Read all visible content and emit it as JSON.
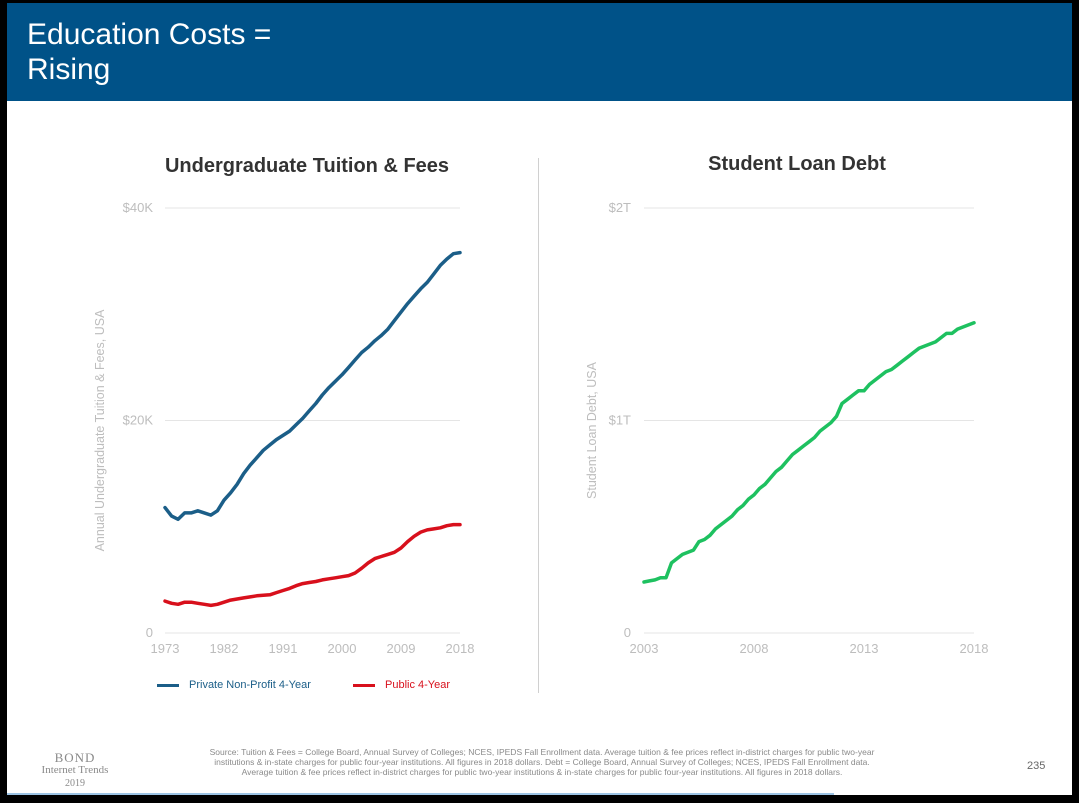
{
  "header": {
    "title_line1": "Education Costs =",
    "title_line2": "Rising"
  },
  "colors": {
    "header_bg": "#005288",
    "private": "#1b5e88",
    "public": "#d8101c",
    "debt": "#1ec160",
    "grid": "#e5e5e5",
    "tick": "#bdbdbd"
  },
  "chart_data": [
    {
      "type": "line",
      "title": "Undergraduate Tuition & Fees",
      "ylabel": "Annual Undergraduate Tuition & Fees, USA",
      "xlabel": "",
      "xlim": [
        1973,
        2018
      ],
      "ylim": [
        0,
        40000
      ],
      "x_ticks": [
        "1973",
        "1982",
        "1991",
        "2000",
        "2009",
        "2018"
      ],
      "y_ticks": [
        "0",
        "$20K",
        "$40K"
      ],
      "grid": true,
      "legend": "bottom",
      "x": [
        1973,
        1974,
        1975,
        1976,
        1977,
        1978,
        1979,
        1980,
        1981,
        1982,
        1983,
        1984,
        1985,
        1986,
        1987,
        1988,
        1989,
        1990,
        1991,
        1992,
        1993,
        1994,
        1995,
        1996,
        1997,
        1998,
        1999,
        2000,
        2001,
        2002,
        2003,
        2004,
        2005,
        2006,
        2007,
        2008,
        2009,
        2010,
        2011,
        2012,
        2013,
        2014,
        2015,
        2016,
        2017,
        2018
      ],
      "series": [
        {
          "name": "Private Non-Profit 4-Year",
          "color": "#1b5e88",
          "values": [
            11800,
            11000,
            10700,
            11300,
            11300,
            11500,
            11300,
            11100,
            11500,
            12500,
            13200,
            14000,
            15000,
            15800,
            16500,
            17200,
            17700,
            18200,
            18600,
            19000,
            19600,
            20200,
            20900,
            21600,
            22400,
            23100,
            23700,
            24300,
            25000,
            25700,
            26400,
            26900,
            27500,
            28000,
            28600,
            29400,
            30200,
            31000,
            31700,
            32400,
            33000,
            33800,
            34600,
            35200,
            35700,
            35800
          ]
        },
        {
          "name": "Public 4-Year",
          "color": "#d8101c",
          "values": [
            3000,
            2800,
            2700,
            2900,
            2900,
            2800,
            2700,
            2600,
            2700,
            2900,
            3100,
            3200,
            3300,
            3400,
            3500,
            3550,
            3600,
            3800,
            4000,
            4200,
            4450,
            4650,
            4750,
            4850,
            5000,
            5100,
            5200,
            5300,
            5400,
            5650,
            6100,
            6600,
            7000,
            7200,
            7400,
            7600,
            8000,
            8600,
            9100,
            9500,
            9700,
            9800,
            9900,
            10100,
            10200,
            10200
          ]
        }
      ]
    },
    {
      "type": "line",
      "title": "Student Loan Debt",
      "ylabel": "Student Loan Debt, USA",
      "xlabel": "",
      "xlim": [
        2003,
        2018
      ],
      "ylim": [
        0,
        2
      ],
      "x_ticks": [
        "2003",
        "2008",
        "2013",
        "2018"
      ],
      "y_ticks": [
        "0",
        "$1T",
        "$2T"
      ],
      "grid": true,
      "x": [
        2003,
        2003.25,
        2003.5,
        2003.75,
        2004,
        2004.25,
        2004.5,
        2004.75,
        2005,
        2005.25,
        2005.5,
        2005.75,
        2006,
        2006.25,
        2006.5,
        2006.75,
        2007,
        2007.25,
        2007.5,
        2007.75,
        2008,
        2008.25,
        2008.5,
        2008.75,
        2009,
        2009.25,
        2009.5,
        2009.75,
        2010,
        2010.25,
        2010.5,
        2010.75,
        2011,
        2011.25,
        2011.5,
        2011.75,
        2012,
        2012.25,
        2012.5,
        2012.75,
        2013,
        2013.25,
        2013.5,
        2013.75,
        2014,
        2014.25,
        2014.5,
        2014.75,
        2015,
        2015.25,
        2015.5,
        2015.75,
        2016,
        2016.25,
        2016.5,
        2016.75,
        2017,
        2017.25,
        2017.5,
        2017.75,
        2018
      ],
      "series": [
        {
          "name": "",
          "color": "#1ec160",
          "values": [
            0.24,
            0.245,
            0.25,
            0.26,
            0.26,
            0.33,
            0.35,
            0.37,
            0.38,
            0.39,
            0.43,
            0.44,
            0.46,
            0.49,
            0.51,
            0.53,
            0.55,
            0.58,
            0.6,
            0.63,
            0.65,
            0.68,
            0.7,
            0.73,
            0.76,
            0.78,
            0.81,
            0.84,
            0.86,
            0.88,
            0.9,
            0.92,
            0.95,
            0.97,
            0.99,
            1.02,
            1.08,
            1.1,
            1.12,
            1.14,
            1.14,
            1.17,
            1.19,
            1.21,
            1.23,
            1.24,
            1.26,
            1.28,
            1.3,
            1.32,
            1.34,
            1.35,
            1.36,
            1.37,
            1.39,
            1.41,
            1.41,
            1.43,
            1.44,
            1.45,
            1.46
          ]
        }
      ]
    }
  ],
  "footer": {
    "logo_line1": "BOND",
    "logo_line2": "Internet Trends",
    "logo_line3": "2019",
    "source_line1": "Source: Tuition & Fees = College Board, Annual Survey of Colleges; NCES, IPEDS Fall Enrollment data. Average tuition & fee prices reflect in-district charges for public two-year",
    "source_line2": "institutions & in-state charges for public four-year institutions. All figures in 2018 dollars.  Debt = College Board, Annual Survey of Colleges; NCES, IPEDS Fall Enrollment data.",
    "source_line3": "Average tuition & fee prices reflect in-district charges for public two-year institutions & in-state charges for public four-year institutions. All figures in 2018 dollars.",
    "page_number": "235"
  }
}
